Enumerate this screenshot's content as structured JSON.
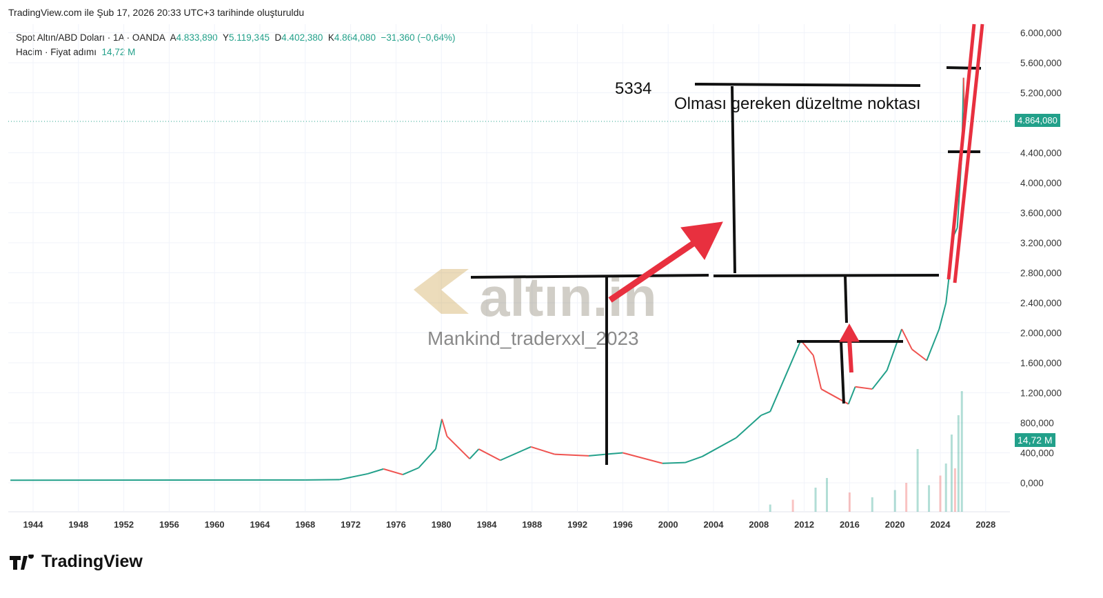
{
  "header": {
    "created": "TradingView.com ile Şub 17, 2026 20:33 UTC+3 tarihinde oluşturuldu"
  },
  "legend": {
    "symbol": "Spot Altın/ABD Doları · 1A · OANDA",
    "o_label": "A",
    "o": "4.833,890",
    "h_label": "Y",
    "h": "5.119,345",
    "l_label": "D",
    "l": "4.402,380",
    "c_label": "K",
    "c": "4.864,080",
    "change": "−31,360 (−0,64%)",
    "volume_label": "Hacim · Fiyat adımı",
    "volume": "14,72 M"
  },
  "tags": {
    "price": "4.864,080",
    "volume": "14,72 M"
  },
  "annotations": {
    "level": "5334",
    "note": "Olması gereken düzeltme noktası",
    "watermark": "altın.in",
    "author": "Mankind_traderxxl_2023"
  },
  "brand": "TradingView",
  "colors": {
    "up": "#22a08a",
    "down": "#ef5350",
    "red_draw": "#e8303f",
    "accent": "#22a08a"
  },
  "chart_data": {
    "type": "line",
    "title": "Spot Altın/ABD Doları · 1A · OANDA",
    "xlabel": "",
    "ylabel": "",
    "xlim": [
      1942,
      2030
    ],
    "ylim": [
      -150,
      6200
    ],
    "x_ticks": [
      "1944",
      "1948",
      "1952",
      "1956",
      "1960",
      "1964",
      "1968",
      "1972",
      "1976",
      "1980",
      "1984",
      "1988",
      "1992",
      "1996",
      "2000",
      "2004",
      "2008",
      "2012",
      "2016",
      "2020",
      "2024",
      "2028"
    ],
    "y_ticks": [
      "6.000,000",
      "5.600,000",
      "5.200,000",
      "4.400,000",
      "4.000,000",
      "3.600,000",
      "3.200,000",
      "2.800,000",
      "2.400,000",
      "2.000,000",
      "1.600,000",
      "1.200,000",
      "800,000",
      "400,000",
      "0,000"
    ],
    "y_tick_values": [
      6000,
      5600,
      5200,
      4400,
      4000,
      3600,
      3200,
      2800,
      2400,
      2000,
      1600,
      1200,
      800,
      400,
      0
    ],
    "grid": true,
    "series": [
      {
        "name": "price",
        "x": [
          1942,
          1968,
          1971,
          1973.5,
          1974.9,
          1976.6,
          1978,
          1979.5,
          1980.05,
          1980.5,
          1982.5,
          1983.3,
          1985.2,
          1987.9,
          1990,
          1993,
          1996,
          1999.5,
          2001.5,
          2003,
          2006,
          2008.2,
          2009,
          2011.7,
          2012.8,
          2013.5,
          2015.9,
          2016.5,
          2018,
          2019.3,
          2020.6,
          2021.5,
          2022.8,
          2023.9,
          2024.5,
          2025.2,
          2025.5,
          2025.9,
          2026.05,
          2026.13
        ],
        "y": [
          35,
          38,
          42,
          120,
          185,
          110,
          200,
          450,
          850,
          620,
          320,
          450,
          300,
          480,
          380,
          360,
          400,
          260,
          270,
          350,
          600,
          900,
          950,
          1900,
          1700,
          1250,
          1050,
          1280,
          1250,
          1500,
          2050,
          1780,
          1630,
          2050,
          2400,
          3300,
          3400,
          4400,
          5400,
          4864
        ]
      },
      {
        "name": "volume",
        "x": [
          2009,
          2011,
          2013,
          2014,
          2016,
          2018,
          2020,
          2021,
          2022,
          2023,
          2024,
          2024.5,
          2025,
          2025.3,
          2025.6,
          2025.9
        ],
        "y": [
          0.3,
          0.5,
          1.0,
          1.4,
          0.8,
          0.6,
          0.9,
          1.2,
          2.6,
          1.1,
          1.5,
          2.0,
          3.2,
          1.8,
          4.0,
          5.0
        ]
      }
    ]
  }
}
